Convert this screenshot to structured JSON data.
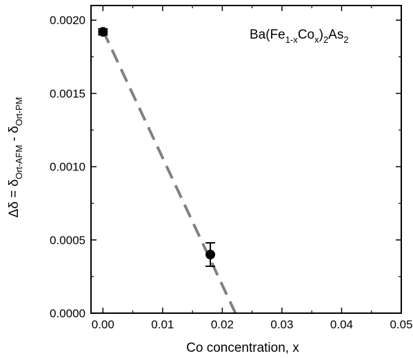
{
  "chart_data": {
    "type": "scatter",
    "title": "",
    "annotation": {
      "base": "Ba(Fe",
      "sub1": "1-x",
      "mid": "Co",
      "sub2": "x",
      "close": ")",
      "sub3": "2",
      "as": "As",
      "sub4": "2"
    },
    "xlabel": "Co concentration, x",
    "ylabel": {
      "prefix": "Δδ = δ",
      "sub1": "Ort-AFM",
      "mid": " - δ",
      "sub2": "Ort-PM"
    },
    "xlim": [
      -0.002,
      0.05
    ],
    "ylim": [
      0.0,
      0.0021
    ],
    "x_ticks": [
      {
        "value": 0.0,
        "label": "0.00"
      },
      {
        "value": 0.01,
        "label": "0.01"
      },
      {
        "value": 0.02,
        "label": "0.02"
      },
      {
        "value": 0.03,
        "label": "0.03"
      },
      {
        "value": 0.04,
        "label": "0.04"
      },
      {
        "value": 0.05,
        "label": "0.05"
      }
    ],
    "y_ticks": [
      {
        "value": 0.0,
        "label": "0.0000"
      },
      {
        "value": 0.0005,
        "label": "0.0005"
      },
      {
        "value": 0.001,
        "label": "0.0010"
      },
      {
        "value": 0.0015,
        "label": "0.0015"
      },
      {
        "value": 0.002,
        "label": "0.0020"
      }
    ],
    "series": [
      {
        "points": [
          {
            "x": 0.0,
            "y": 0.00192,
            "err": 2e-05
          },
          {
            "x": 0.018,
            "y": 0.0004,
            "err": 8e-05
          }
        ],
        "marker_color": "#000000"
      }
    ],
    "fit_line": {
      "x": [
        0.0,
        0.0222
      ],
      "y": [
        0.00193,
        0.0
      ],
      "color": "#808080",
      "style": "dashed"
    },
    "grid": false
  }
}
